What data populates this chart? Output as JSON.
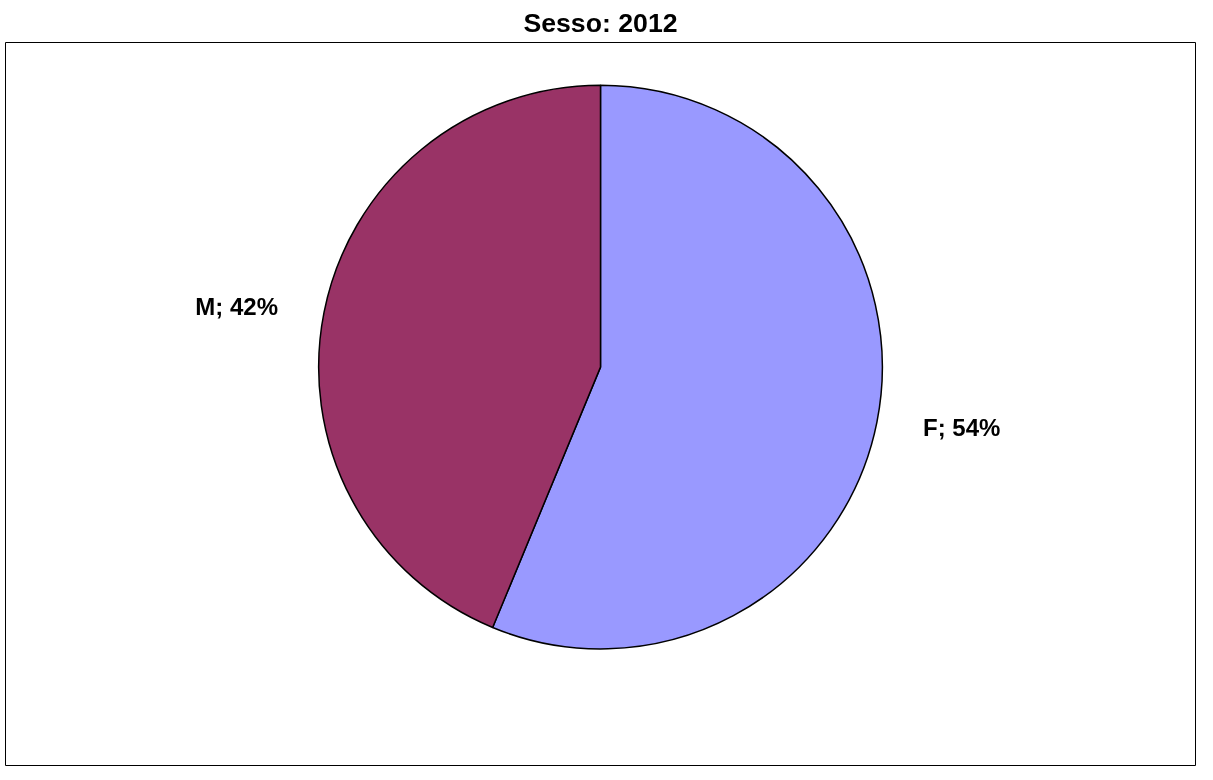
{
  "chart_data": {
    "type": "pie",
    "title": "Sesso: 2012",
    "categories": [
      "F",
      "M"
    ],
    "values": [
      54,
      42
    ],
    "colors": [
      "#9999ff",
      "#993366"
    ],
    "value_labels": [
      "54%",
      "42%"
    ]
  }
}
